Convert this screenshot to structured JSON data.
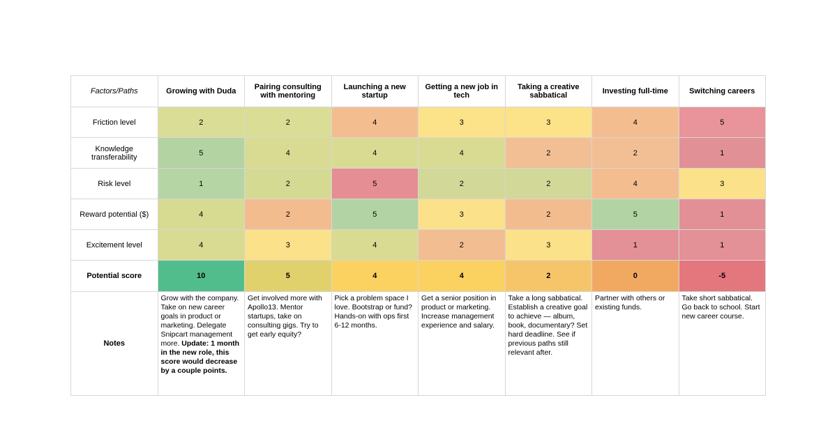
{
  "table": {
    "corner_label": "Factors/Paths",
    "columns": [
      "Growing with Duda",
      "Pairing consulting with mentoring",
      "Launching a new startup",
      "Getting a new job in tech",
      "Taking a creative sabbatical",
      "Investing full-time",
      "Switching careers"
    ],
    "rows": [
      {
        "label": "Friction level",
        "cells": [
          {
            "v": "2",
            "bg": "#dadd95"
          },
          {
            "v": "2",
            "bg": "#dadd95"
          },
          {
            "v": "4",
            "bg": "#f4bd90"
          },
          {
            "v": "3",
            "bg": "#fce289"
          },
          {
            "v": "3",
            "bg": "#fce289"
          },
          {
            "v": "4",
            "bg": "#f4bd90"
          },
          {
            "v": "5",
            "bg": "#e8949a"
          }
        ]
      },
      {
        "label": "Knowledge transferability",
        "cells": [
          {
            "v": "5",
            "bg": "#b4d3a2"
          },
          {
            "v": "4",
            "bg": "#d9db93"
          },
          {
            "v": "4",
            "bg": "#d9db93"
          },
          {
            "v": "4",
            "bg": "#d9db93"
          },
          {
            "v": "2",
            "bg": "#f2bf94"
          },
          {
            "v": "2",
            "bg": "#f2bf94"
          },
          {
            "v": "1",
            "bg": "#e19096"
          }
        ]
      },
      {
        "label": "Risk level",
        "cells": [
          {
            "v": "1",
            "bg": "#b6d5a5"
          },
          {
            "v": "2",
            "bg": "#d5da93"
          },
          {
            "v": "5",
            "bg": "#e58e93"
          },
          {
            "v": "2",
            "bg": "#d2d897"
          },
          {
            "v": "2",
            "bg": "#d2d897"
          },
          {
            "v": "4",
            "bg": "#f3bd90"
          },
          {
            "v": "3",
            "bg": "#fbe189"
          }
        ]
      },
      {
        "label": "Reward potential ($)",
        "cells": [
          {
            "v": "4",
            "bg": "#d7da91"
          },
          {
            "v": "2",
            "bg": "#f3bc8f"
          },
          {
            "v": "5",
            "bg": "#b2d3a3"
          },
          {
            "v": "3",
            "bg": "#fbe189"
          },
          {
            "v": "2",
            "bg": "#f3bc8f"
          },
          {
            "v": "5",
            "bg": "#b2d3a3"
          },
          {
            "v": "1",
            "bg": "#e29096"
          }
        ]
      },
      {
        "label": "Excitement level",
        "cells": [
          {
            "v": "4",
            "bg": "#d8db91"
          },
          {
            "v": "3",
            "bg": "#fbe189"
          },
          {
            "v": "4",
            "bg": "#d8db91"
          },
          {
            "v": "2",
            "bg": "#f3bd92"
          },
          {
            "v": "3",
            "bg": "#fbe189"
          },
          {
            "v": "1",
            "bg": "#e39096"
          },
          {
            "v": "1",
            "bg": "#e39096"
          }
        ]
      }
    ],
    "score_row": {
      "label": "Potential score",
      "cells": [
        {
          "v": "10",
          "bg": "#52bd8c"
        },
        {
          "v": "5",
          "bg": "#e0d16d"
        },
        {
          "v": "4",
          "bg": "#fbd160"
        },
        {
          "v": "4",
          "bg": "#fbd160"
        },
        {
          "v": "2",
          "bg": "#f7c569"
        },
        {
          "v": "0",
          "bg": "#f1a962"
        },
        {
          "v": "-5",
          "bg": "#e4777d"
        }
      ]
    },
    "notes_row": {
      "label": "Notes",
      "cells": [
        {
          "text": "Grow with the company. Take on new career goals in product or marketing. Delegate Snipcart management more. ",
          "bold_text": "Update: 1 month in the new role, this score would decrease by a couple points."
        },
        {
          "text": "Get involved more with Apollo13. Mentor startups, take on consulting gigs. Try to get early equity?",
          "bold_text": ""
        },
        {
          "text": "Pick a problem space I love. Bootstrap or fund? Hands-on with ops first 6-12 months.",
          "bold_text": ""
        },
        {
          "text": "Get a senior position in product or marketing. Increase management experience and salary.",
          "bold_text": ""
        },
        {
          "text": "Take a long sabbatical. Establish a creative goal to achieve — album, book, documentary? Set hard deadline. See if previous paths still relevant after.",
          "bold_text": ""
        },
        {
          "text": "Partner with others or existing funds.",
          "bold_text": ""
        },
        {
          "text": "Take short sabbatical. Go back to school. Start new career course.",
          "bold_text": ""
        }
      ]
    },
    "colors": {
      "grid_line": "#d7d7d7",
      "best_green": "#52bd8c",
      "worst_red": "#e4777d",
      "mid_yellow": "#fbe189"
    }
  }
}
